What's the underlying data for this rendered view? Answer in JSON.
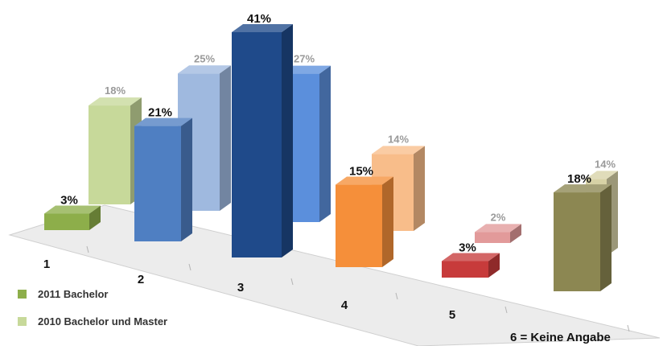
{
  "chart_data": {
    "type": "bar",
    "categories": [
      "1",
      "2",
      "3",
      "4",
      "5",
      "6 = Keine Angabe"
    ],
    "series": [
      {
        "name": "2011 Bachelor",
        "values": [
          3,
          21,
          41,
          15,
          3,
          18
        ],
        "labels": [
          "3%",
          "21%",
          "41%",
          "15%",
          "3%",
          "18%"
        ],
        "colors": [
          "#8dae4a",
          "#4f7fc2",
          "#1f4a8a",
          "#f58f3a",
          "#c73b3b",
          "#8c8752"
        ]
      },
      {
        "name": "2010 Bachelor und Master",
        "values": [
          18,
          25,
          27,
          14,
          2,
          14
        ],
        "labels": [
          "18%",
          "25%",
          "27%",
          "14%",
          "2%",
          "14%"
        ],
        "colors": [
          "#c7d99a",
          "#9fb9df",
          "#5b8fdc",
          "#f8bd8a",
          "#e29a9a",
          "#d7d2a6"
        ]
      }
    ],
    "ylim": [
      0,
      45
    ],
    "grid": false,
    "legend_position": "bottom-left",
    "legend_colors": [
      "#8dae4a",
      "#c7d99a"
    ]
  }
}
